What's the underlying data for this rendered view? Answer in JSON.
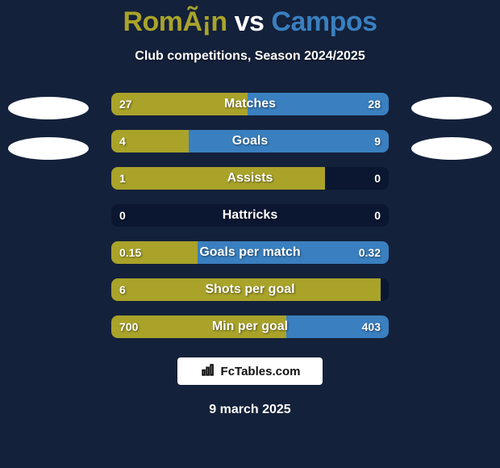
{
  "background_color": "#14213a",
  "title": {
    "prefix": "RomÃ¡n",
    "vs": " vs ",
    "suffix": "Campos",
    "prefix_color": "#a9a32a",
    "vs_color": "#ffffff",
    "suffix_color": "#3a7fbf"
  },
  "subtitle": "Club competitions, Season 2024/2025",
  "subtitle_color": "#ffffff",
  "ellipse_color": "#ffffff",
  "bars": {
    "track_color": "#0b1730",
    "left_color": "#a9a32a",
    "right_color": "#3a7fbf",
    "label_color": "#ffffff",
    "value_color": "#ffffff",
    "items": [
      {
        "label": "Matches",
        "left_value": "27",
        "right_value": "28",
        "left_pct": 49,
        "right_pct": 51
      },
      {
        "label": "Goals",
        "left_value": "4",
        "right_value": "9",
        "left_pct": 28,
        "right_pct": 72
      },
      {
        "label": "Assists",
        "left_value": "1",
        "right_value": "0",
        "left_pct": 77,
        "right_pct": 0
      },
      {
        "label": "Hattricks",
        "left_value": "0",
        "right_value": "0",
        "left_pct": 0,
        "right_pct": 0
      },
      {
        "label": "Goals per match",
        "left_value": "0.15",
        "right_value": "0.32",
        "left_pct": 31,
        "right_pct": 69
      },
      {
        "label": "Shots per goal",
        "left_value": "6",
        "right_value": "",
        "left_pct": 97,
        "right_pct": 0
      },
      {
        "label": "Min per goal",
        "left_value": "700",
        "right_value": "403",
        "left_pct": 63,
        "right_pct": 37
      }
    ]
  },
  "watermark": {
    "text": "FcTables.com",
    "bg_color": "#ffffff",
    "text_color": "#111111"
  },
  "date": "9 march 2025",
  "date_color": "#ffffff"
}
